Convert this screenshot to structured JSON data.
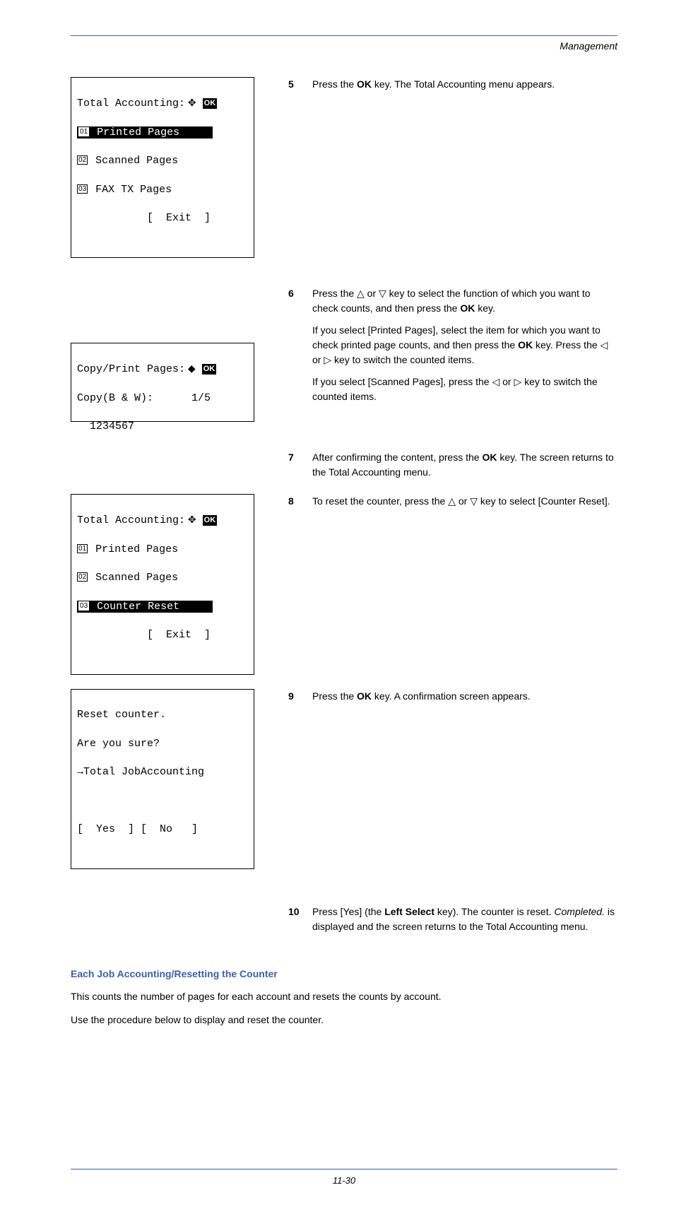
{
  "header": {
    "section": "Management"
  },
  "lcd1": {
    "title": "Total Accounting:",
    "items": [
      {
        "n": "1",
        "label": "Printed Pages",
        "hl": true
      },
      {
        "n": "2",
        "label": "Scanned Pages",
        "hl": false
      },
      {
        "n": "3",
        "label": "FAX TX Pages",
        "hl": false
      }
    ],
    "softkey": "[  Exit  ]"
  },
  "lcd2": {
    "title": "Copy/Print Pages:",
    "line2_left": "Copy(B & W):",
    "line2_right": "1/5",
    "value": "  1234567"
  },
  "lcd3": {
    "title": "Total Accounting:",
    "items": [
      {
        "n": "1",
        "label": "Printed Pages",
        "hl": false
      },
      {
        "n": "2",
        "label": "Scanned Pages",
        "hl": false
      },
      {
        "n": "3",
        "label": "Counter Reset",
        "hl": true
      }
    ],
    "softkey": "[  Exit  ]"
  },
  "lcd4": {
    "l1": "Reset counter.",
    "l2": "Are you sure?",
    "l3": "→Total JobAccounting",
    "softkey": "[  Yes  ] [  No   ]"
  },
  "steps": {
    "s5": {
      "n": "5",
      "t": "Press the <b>OK</b> key. The Total Accounting menu appears."
    },
    "s6": {
      "n": "6",
      "p1": "Press the △ or ▽ key to select the function of which you want to check counts, and then press the <b>OK</b> key.",
      "p2": "If you select [Printed Pages], select the item for which you want to check printed page counts, and then press the <b>OK</b> key. Press the ◁ or ▷ key to switch the counted items.",
      "p3": "If you select [Scanned Pages], press the ◁ or ▷ key to switch the counted items."
    },
    "s7": {
      "n": "7",
      "t": "After confirming the content, press the <b>OK</b> key. The screen returns to the Total Accounting menu."
    },
    "s8": {
      "n": "8",
      "t": "To reset the counter, press the △ or ▽ key to select [Counter Reset]."
    },
    "s9": {
      "n": "9",
      "t": "Press the <b>OK</b> key. A confirmation screen appears."
    },
    "s10": {
      "n": "10",
      "t": "Press [Yes] (the <b>Left Select</b> key). The counter is reset. <i>Completed.</i> is displayed and the screen returns to the Total Accounting menu."
    }
  },
  "section": {
    "title": "Each Job Accounting/Resetting the Counter",
    "p1": "This counts the number of pages for each account and resets the counts by account.",
    "p2": "Use the procedure below to display and reset the counter."
  },
  "footer": "11-30"
}
